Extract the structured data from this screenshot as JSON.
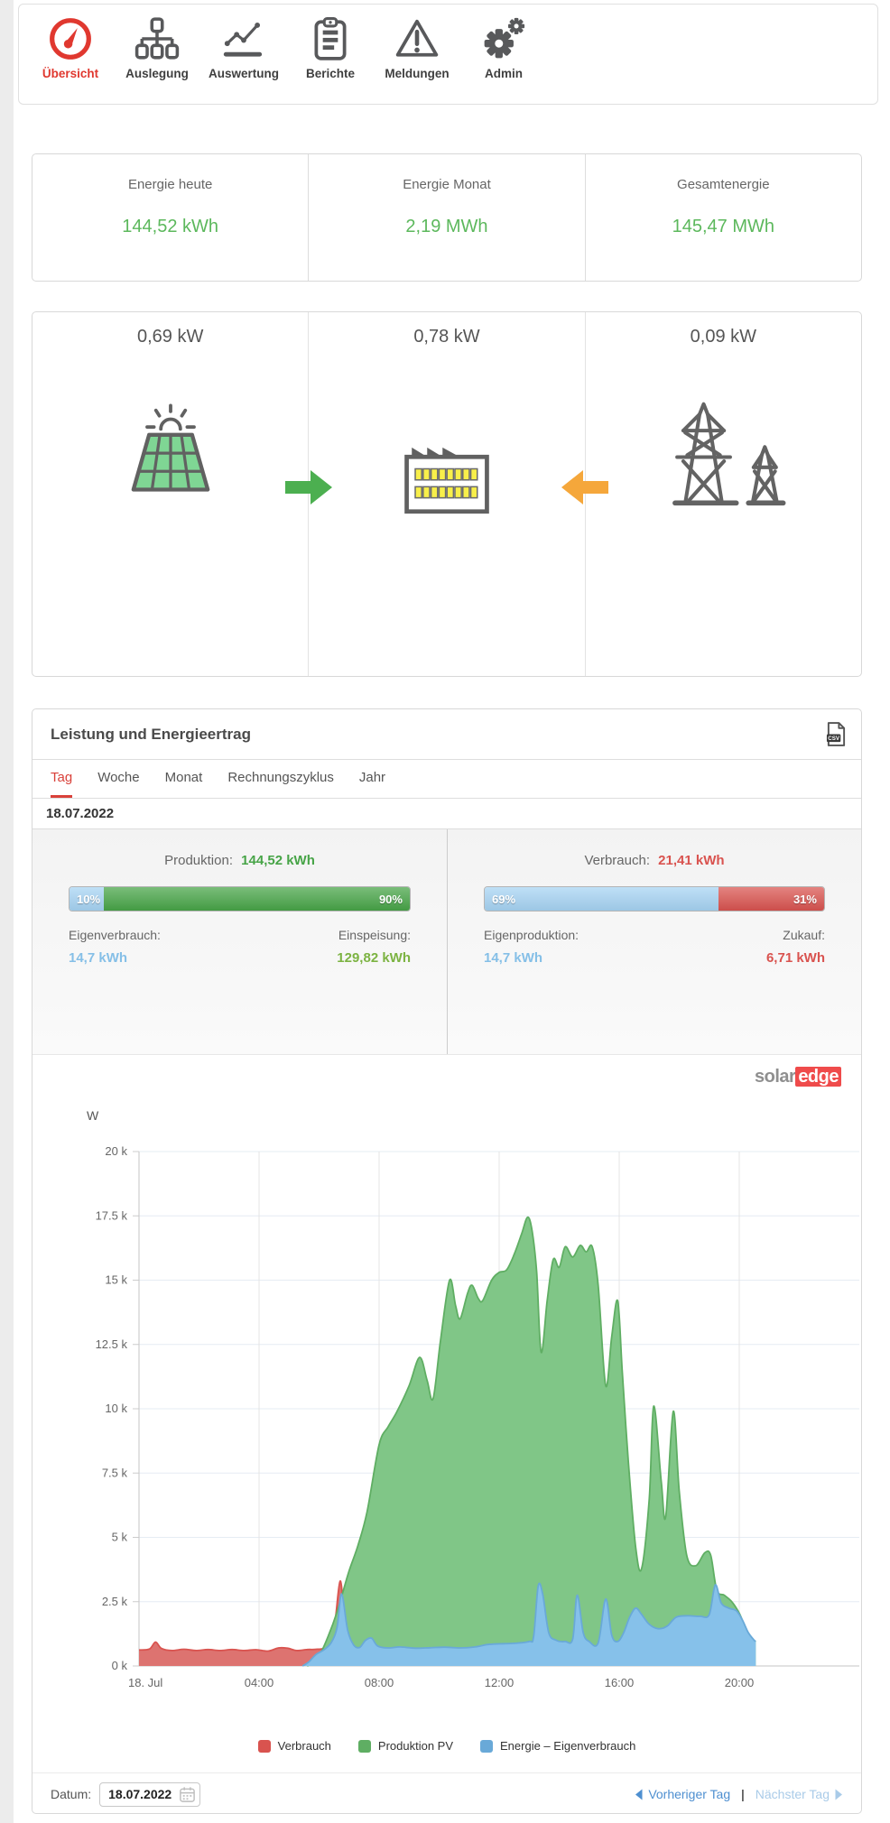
{
  "nav": {
    "active_color": "#e0382f",
    "inactive_color": "#58595b",
    "items": [
      {
        "label": "Übersicht",
        "icon": "gauge-icon",
        "active": true
      },
      {
        "label": "Auslegung",
        "icon": "hierarchy-icon",
        "active": false
      },
      {
        "label": "Auswertung",
        "icon": "line-chart-icon",
        "active": false
      },
      {
        "label": "Berichte",
        "icon": "clipboard-icon",
        "active": false
      },
      {
        "label": "Meldungen",
        "icon": "warning-icon",
        "active": false
      },
      {
        "label": "Admin",
        "icon": "gears-icon",
        "active": false
      }
    ]
  },
  "energy_summary": {
    "value_color": "#5cb85c",
    "cards": [
      {
        "label": "Energie heute",
        "value": "144,52 kWh"
      },
      {
        "label": "Energie Monat",
        "value": "2,19 MWh"
      },
      {
        "label": "Gesamtenergie",
        "value": "145,47 MWh"
      }
    ]
  },
  "power_flow": {
    "solar": {
      "value": "0,69 kW",
      "icon": "solar-panel-icon"
    },
    "house": {
      "value": "0,78 kW",
      "icon": "building-icon"
    },
    "grid": {
      "value": "0,09 kW",
      "icon": "power-towers-icon"
    },
    "arrow_to_house_color": "#4caf50",
    "arrow_from_grid_color": "#f5a73b"
  },
  "panel": {
    "title": "Leistung und Energieertrag",
    "tabs": [
      {
        "label": "Tag",
        "active": true
      },
      {
        "label": "Woche",
        "active": false
      },
      {
        "label": "Monat",
        "active": false
      },
      {
        "label": "Rechnungszyklus",
        "active": false
      },
      {
        "label": "Jahr",
        "active": false
      }
    ],
    "date_heading": "18.07.2022",
    "production": {
      "label": "Produktion:",
      "value": "144,52 kWh",
      "value_color": "#47a447",
      "bar": [
        {
          "label": "10%",
          "pct": 10,
          "color": "#a6d3f3"
        },
        {
          "label": "90%",
          "pct": 90,
          "color": "#47a447"
        }
      ],
      "left": {
        "label": "Eigenverbrauch:",
        "value": "14,7 kWh",
        "color": "#85bfe7"
      },
      "right": {
        "label": "Einspeisung:",
        "value": "129,82 kWh",
        "color": "#7cb342"
      }
    },
    "consumption": {
      "label": "Verbrauch:",
      "value": "21,41 kWh",
      "value_color": "#d9534f",
      "bar": [
        {
          "label": "69%",
          "pct": 69,
          "color": "#a6d3f3"
        },
        {
          "label": "31%",
          "pct": 31,
          "color": "#d9534f"
        }
      ],
      "left": {
        "label": "Eigenproduktion:",
        "value": "14,7 kWh",
        "color": "#85bfe7"
      },
      "right": {
        "label": "Zukauf:",
        "value": "6,71 kWh",
        "color": "#d9534f"
      }
    },
    "logo": {
      "part1": "solar",
      "part2": "edge",
      "part1_color": "#8f8f8f",
      "part2_bg": "#ef4b4b"
    },
    "footer": {
      "date_label": "Datum:",
      "date_value": "18.07.2022",
      "prev": "Vorheriger Tag",
      "next": "Nächster Tag",
      "separator": "|",
      "prev_color": "#4e8fd0",
      "next_color": "#a9cbe8"
    }
  },
  "chart_data": {
    "type": "area",
    "title": "",
    "xlabel": "",
    "ylabel": "W",
    "ylim": [
      0,
      20000
    ],
    "xlim_hours": [
      0,
      24
    ],
    "grid": true,
    "legend_position": "bottom",
    "yticks": [
      {
        "v": 0,
        "label": "0 k"
      },
      {
        "v": 2500,
        "label": "2.5 k"
      },
      {
        "v": 5000,
        "label": "5 k"
      },
      {
        "v": 7500,
        "label": "7.5 k"
      },
      {
        "v": 10000,
        "label": "10 k"
      },
      {
        "v": 12500,
        "label": "12.5 k"
      },
      {
        "v": 15000,
        "label": "15 k"
      },
      {
        "v": 17500,
        "label": "17.5 k"
      },
      {
        "v": 20000,
        "label": "20 k"
      }
    ],
    "xticks": [
      {
        "h": 0,
        "label": "18. Jul"
      },
      {
        "h": 4,
        "label": "04:00"
      },
      {
        "h": 8,
        "label": "08:00"
      },
      {
        "h": 12,
        "label": "12:00"
      },
      {
        "h": 16,
        "label": "16:00"
      },
      {
        "h": 20,
        "label": "20:00"
      }
    ],
    "series": [
      {
        "name": "Verbrauch",
        "color": "#d9534f",
        "fill": "#dd7370",
        "points": [
          [
            0,
            620
          ],
          [
            0.35,
            660
          ],
          [
            0.55,
            930
          ],
          [
            0.75,
            680
          ],
          [
            1.1,
            600
          ],
          [
            1.5,
            650
          ],
          [
            1.9,
            600
          ],
          [
            2.3,
            640
          ],
          [
            2.7,
            600
          ],
          [
            3.1,
            640
          ],
          [
            3.5,
            600
          ],
          [
            3.9,
            630
          ],
          [
            4.3,
            580
          ],
          [
            4.65,
            700
          ],
          [
            4.95,
            690
          ],
          [
            5.25,
            600
          ],
          [
            5.6,
            640
          ],
          [
            5.9,
            650
          ],
          [
            6.2,
            750
          ],
          [
            6.5,
            1500
          ],
          [
            6.7,
            3300
          ],
          [
            6.85,
            1900
          ],
          [
            7.05,
            850
          ],
          [
            7.3,
            700
          ],
          [
            7.6,
            1000
          ],
          [
            7.8,
            1050
          ],
          [
            8,
            760
          ],
          [
            8.5,
            720
          ],
          [
            9,
            670
          ],
          [
            9.5,
            700
          ],
          [
            10,
            710
          ],
          [
            10.5,
            690
          ],
          [
            11,
            720
          ],
          [
            11.5,
            810
          ],
          [
            12,
            840
          ],
          [
            12.5,
            860
          ],
          [
            13,
            930
          ],
          [
            13.3,
            3050
          ],
          [
            13.5,
            2700
          ],
          [
            13.7,
            1250
          ],
          [
            14,
            970
          ],
          [
            14.3,
            930
          ],
          [
            14.6,
            2700
          ],
          [
            14.8,
            1250
          ],
          [
            15,
            930
          ],
          [
            15.3,
            880
          ],
          [
            15.55,
            2550
          ],
          [
            15.75,
            1150
          ],
          [
            16,
            930
          ],
          [
            16.35,
            1850
          ],
          [
            16.55,
            2200
          ],
          [
            16.8,
            1950
          ],
          [
            17,
            1570
          ],
          [
            17.3,
            1420
          ],
          [
            17.6,
            1520
          ],
          [
            17.9,
            1880
          ],
          [
            18.3,
            1920
          ],
          [
            18.7,
            1910
          ],
          [
            19,
            1950
          ],
          [
            19.2,
            3100
          ],
          [
            19.4,
            2400
          ],
          [
            19.65,
            2220
          ],
          [
            19.9,
            2120
          ],
          [
            20.1,
            1750
          ],
          [
            20.3,
            1250
          ],
          [
            20.5,
            960
          ]
        ]
      },
      {
        "name": "Produktion PV",
        "color": "#5fae63",
        "fill": "#80c687",
        "points": [
          [
            5.6,
            0
          ],
          [
            5.8,
            120
          ],
          [
            6,
            380
          ],
          [
            6.3,
            1150
          ],
          [
            6.6,
            2100
          ],
          [
            6.8,
            2900
          ],
          [
            7,
            3700
          ],
          [
            7.3,
            4700
          ],
          [
            7.6,
            6000
          ],
          [
            8,
            8600
          ],
          [
            8.3,
            9300
          ],
          [
            8.6,
            9900
          ],
          [
            9,
            10900
          ],
          [
            9.35,
            12000
          ],
          [
            9.6,
            11100
          ],
          [
            9.8,
            10400
          ],
          [
            10.05,
            12700
          ],
          [
            10.35,
            15000
          ],
          [
            10.55,
            14000
          ],
          [
            10.7,
            13500
          ],
          [
            10.95,
            14500
          ],
          [
            11.1,
            14800
          ],
          [
            11.3,
            14300
          ],
          [
            11.45,
            14200
          ],
          [
            11.75,
            15000
          ],
          [
            12,
            15300
          ],
          [
            12.25,
            15400
          ],
          [
            12.5,
            16000
          ],
          [
            12.75,
            16800
          ],
          [
            12.95,
            17450
          ],
          [
            13.1,
            16900
          ],
          [
            13.25,
            15300
          ],
          [
            13.4,
            12200
          ],
          [
            13.6,
            14200
          ],
          [
            13.8,
            15800
          ],
          [
            14,
            15500
          ],
          [
            14.2,
            16300
          ],
          [
            14.45,
            15900
          ],
          [
            14.7,
            16350
          ],
          [
            14.9,
            16100
          ],
          [
            15.1,
            16300
          ],
          [
            15.3,
            14800
          ],
          [
            15.55,
            10900
          ],
          [
            15.75,
            12800
          ],
          [
            15.95,
            14200
          ],
          [
            16.1,
            11500
          ],
          [
            16.3,
            8000
          ],
          [
            16.55,
            4600
          ],
          [
            16.75,
            3800
          ],
          [
            17,
            6500
          ],
          [
            17.15,
            10100
          ],
          [
            17.4,
            7200
          ],
          [
            17.55,
            5800
          ],
          [
            17.8,
            9900
          ],
          [
            18,
            6800
          ],
          [
            18.25,
            4300
          ],
          [
            18.55,
            3900
          ],
          [
            18.85,
            4400
          ],
          [
            19.05,
            4300
          ],
          [
            19.25,
            2950
          ],
          [
            19.5,
            2750
          ],
          [
            19.75,
            2500
          ],
          [
            20,
            2050
          ],
          [
            20.2,
            1500
          ],
          [
            20.4,
            1050
          ],
          [
            20.55,
            950
          ]
        ]
      },
      {
        "name": "Energie – Eigenverbrauch",
        "color": "#69a9d8",
        "fill": "#86c1ea",
        "points": [
          [
            5.45,
            0
          ],
          [
            5.65,
            150
          ],
          [
            5.9,
            450
          ],
          [
            6.15,
            620
          ],
          [
            6.4,
            900
          ],
          [
            6.6,
            1500
          ],
          [
            6.75,
            2800
          ],
          [
            6.95,
            1400
          ],
          [
            7.15,
            820
          ],
          [
            7.35,
            720
          ],
          [
            7.55,
            1000
          ],
          [
            7.75,
            1080
          ],
          [
            7.95,
            780
          ],
          [
            8.3,
            700
          ],
          [
            8.7,
            740
          ],
          [
            9.2,
            690
          ],
          [
            9.7,
            710
          ],
          [
            10.2,
            730
          ],
          [
            10.7,
            700
          ],
          [
            11.2,
            740
          ],
          [
            11.6,
            830
          ],
          [
            12,
            860
          ],
          [
            12.5,
            880
          ],
          [
            13,
            950
          ],
          [
            13.15,
            1150
          ],
          [
            13.3,
            3100
          ],
          [
            13.45,
            2800
          ],
          [
            13.65,
            1300
          ],
          [
            13.9,
            1000
          ],
          [
            14.2,
            950
          ],
          [
            14.45,
            1050
          ],
          [
            14.6,
            2750
          ],
          [
            14.8,
            1300
          ],
          [
            15,
            950
          ],
          [
            15.3,
            900
          ],
          [
            15.55,
            2600
          ],
          [
            15.75,
            1200
          ],
          [
            15.95,
            950
          ],
          [
            16.15,
            1300
          ],
          [
            16.35,
            1900
          ],
          [
            16.55,
            2250
          ],
          [
            16.75,
            2000
          ],
          [
            17,
            1620
          ],
          [
            17.3,
            1450
          ],
          [
            17.6,
            1550
          ],
          [
            17.9,
            1900
          ],
          [
            18.3,
            1950
          ],
          [
            18.7,
            1930
          ],
          [
            19,
            2000
          ],
          [
            19.2,
            3150
          ],
          [
            19.4,
            2450
          ],
          [
            19.65,
            2250
          ],
          [
            19.9,
            2150
          ],
          [
            20.1,
            1800
          ],
          [
            20.3,
            1300
          ],
          [
            20.5,
            1000
          ],
          [
            20.55,
            960
          ]
        ]
      }
    ]
  }
}
